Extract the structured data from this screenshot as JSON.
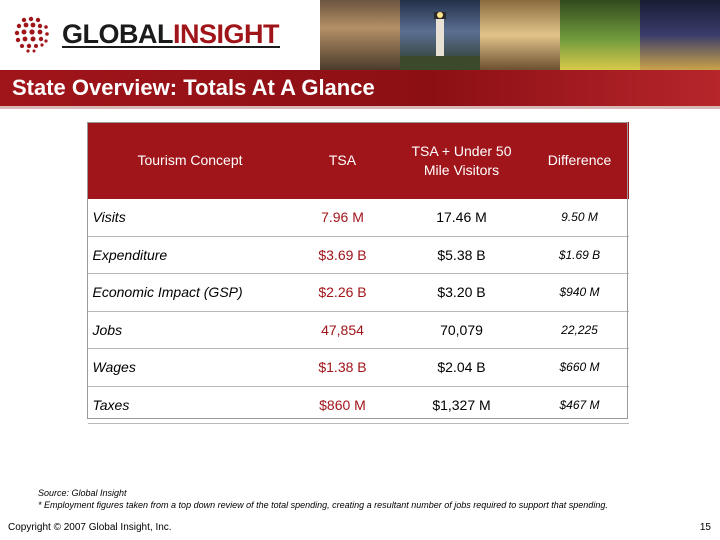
{
  "header": {
    "brand_part1": "GLOBAL",
    "brand_part2": "INSIGHT",
    "title": "State Overview: Totals At A Glance"
  },
  "table": {
    "headers": [
      "Tourism Concept",
      "TSA",
      "TSA + Under 50 Mile Visitors",
      "Difference"
    ],
    "rows": [
      {
        "concept": "Visits",
        "tsa": "7.96 M",
        "total": "17.46 M",
        "diff": "9.50 M"
      },
      {
        "concept": "Expenditure",
        "tsa": "$3.69 B",
        "total": "$5.38 B",
        "diff": "$1.69 B"
      },
      {
        "concept": "Economic Impact (GSP)",
        "tsa": "$2.26 B",
        "total": "$3.20 B",
        "diff": "$940 M"
      },
      {
        "concept": "Jobs",
        "tsa": "47,854",
        "total": "70,079",
        "diff": "22,225"
      },
      {
        "concept": "Wages",
        "tsa": "$1.38 B",
        "total": "$2.04 B",
        "diff": "$660 M"
      },
      {
        "concept": "Taxes",
        "tsa": "$860 M",
        "total": "$1,327 M",
        "diff": "$467 M"
      }
    ]
  },
  "footer": {
    "source": "Source: Global Insight",
    "note": "* Employment figures taken from a top down review of the total spending, creating a resultant number of jobs required to support that spending.",
    "copyright": "Copyright © 2007 Global Insight, Inc.",
    "page_number": "15"
  },
  "colors": {
    "brand_red": "#a0151a",
    "brand_dark": "#1b1b1b"
  }
}
